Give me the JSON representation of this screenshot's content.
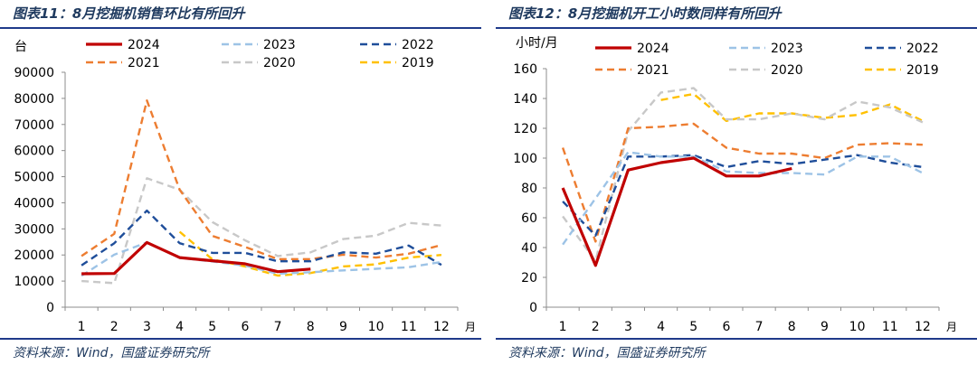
{
  "charts": [
    {
      "panel_title": "图表11：8月挖掘机销售环比有所回升",
      "source": "资料来源：Wind，国盛证券研究所",
      "chart_data": {
        "type": "line",
        "title": "",
        "ylabel": "台",
        "xlabel": "月",
        "categories": [
          "1",
          "2",
          "3",
          "4",
          "5",
          "6",
          "7",
          "8",
          "9",
          "10",
          "11",
          "12"
        ],
        "ylim": [
          0,
          90000
        ],
        "yticks": [
          0,
          10000,
          20000,
          30000,
          40000,
          50000,
          60000,
          70000,
          80000,
          90000
        ],
        "ytick_labels": [
          "0",
          "10000",
          "20000",
          "30000",
          "40000",
          "50000",
          "60000",
          "70000",
          "80000",
          "90000"
        ],
        "series": [
          {
            "name": "2024",
            "color": "#c00000",
            "width": 3.2,
            "dash": "",
            "values": [
              12800,
              12900,
              24800,
              19000,
              17800,
              16600,
              13600,
              14600,
              null,
              null,
              null,
              null
            ]
          },
          {
            "name": "2023",
            "color": "#9dc3e6",
            "width": 2.4,
            "dash": "8,5",
            "values": [
              12000,
              20100,
              24800,
              18900,
              17500,
              15900,
              12800,
              13400,
              14100,
              14700,
              15300,
              17300
            ]
          },
          {
            "name": "2022",
            "color": "#1f4e9a",
            "width": 2.4,
            "dash": "8,5",
            "values": [
              16000,
              24500,
              37000,
              24500,
              20800,
              20800,
              17600,
              17600,
              21000,
              20500,
              23600,
              16200
            ]
          },
          {
            "name": "2021",
            "color": "#ed7d31",
            "width": 2.4,
            "dash": "8,5",
            "values": [
              19600,
              28100,
              79200,
              45000,
              27300,
              23100,
              18400,
              18400,
              20100,
              19000,
              20500,
              23800
            ]
          },
          {
            "name": "2020",
            "color": "#c8c8c8",
            "width": 2.4,
            "dash": "8,5",
            "values": [
              10000,
              9200,
              49400,
              45000,
              32600,
              25600,
              19600,
              21000,
              26100,
              27400,
              32300,
              31300
            ]
          },
          {
            "name": "2019",
            "color": "#ffc000",
            "width": 2.4,
            "dash": "8,5",
            "values": [
              null,
              null,
              null,
              28900,
              18300,
              15600,
              12100,
              13100,
              15600,
              16400,
              19000,
              20000
            ]
          }
        ]
      }
    },
    {
      "panel_title": "图表12：8月挖掘机开工小时数同样有所回升",
      "source": "资料来源：Wind，国盛证券研究所",
      "chart_data": {
        "type": "line",
        "title": "",
        "ylabel": "小时/月",
        "xlabel": "月",
        "categories": [
          "1",
          "2",
          "3",
          "4",
          "5",
          "6",
          "7",
          "8",
          "9",
          "10",
          "11",
          "12"
        ],
        "ylim": [
          0,
          160
        ],
        "yticks": [
          0,
          20,
          40,
          60,
          80,
          100,
          120,
          140,
          160
        ],
        "ytick_labels": [
          "0",
          "20",
          "40",
          "60",
          "80",
          "100",
          "120",
          "140",
          "160"
        ],
        "series": [
          {
            "name": "2024",
            "color": "#c00000",
            "width": 3.2,
            "dash": "",
            "values": [
              80,
              28,
              92,
              97,
              100,
              88,
              88,
              93,
              null,
              null,
              null,
              null
            ]
          },
          {
            "name": "2023",
            "color": "#9dc3e6",
            "width": 2.4,
            "dash": "8,5",
            "values": [
              42,
              73,
              104,
              101,
              101,
              91,
              90,
              90,
              89,
              101,
              101,
              90
            ]
          },
          {
            "name": "2022",
            "color": "#1f4e9a",
            "width": 2.4,
            "dash": "8,5",
            "values": [
              71,
              48,
              101,
              101,
              102,
              94,
              98,
              96,
              99,
              102,
              97,
              94
            ]
          },
          {
            "name": "2021",
            "color": "#ed7d31",
            "width": 2.4,
            "dash": "8,5",
            "values": [
              107,
              44,
              120,
              121,
              123,
              107,
              103,
              103,
              100,
              109,
              110,
              109
            ]
          },
          {
            "name": "2020",
            "color": "#c8c8c8",
            "width": 2.4,
            "dash": "8,5",
            "values": [
              61,
              31,
              118,
              144,
              147,
              126,
              126,
              130,
              126,
              138,
              134,
              124
            ]
          },
          {
            "name": "2019",
            "color": "#ffc000",
            "width": 2.4,
            "dash": "8,5",
            "values": [
              null,
              null,
              null,
              139,
              143,
              125,
              130,
              130,
              127,
              129,
              136,
              125
            ]
          }
        ]
      }
    }
  ]
}
